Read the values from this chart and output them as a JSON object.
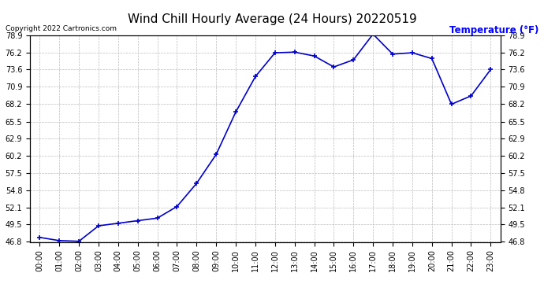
{
  "title": "Wind Chill Hourly Average (24 Hours) 20220519",
  "ylabel": "Temperature (°F)",
  "copyright_text": "Copyright 2022 Cartronics.com",
  "hours": [
    "00:00",
    "01:00",
    "02:00",
    "03:00",
    "04:00",
    "05:00",
    "06:00",
    "07:00",
    "08:00",
    "09:00",
    "10:00",
    "11:00",
    "12:00",
    "13:00",
    "14:00",
    "15:00",
    "16:00",
    "17:00",
    "18:00",
    "19:00",
    "20:00",
    "21:00",
    "22:00",
    "23:00"
  ],
  "values": [
    47.5,
    47.0,
    46.9,
    49.3,
    49.7,
    50.1,
    50.5,
    52.3,
    55.9,
    60.4,
    67.0,
    72.5,
    76.2,
    76.3,
    75.7,
    74.0,
    75.1,
    79.1,
    76.0,
    76.2,
    75.3,
    68.2,
    69.5,
    73.6
  ],
  "line_color": "#0000cc",
  "marker": "+",
  "marker_size": 5,
  "line_width": 1.2,
  "ylim_min": 46.8,
  "ylim_max": 78.9,
  "yticks": [
    46.8,
    49.5,
    52.1,
    54.8,
    57.5,
    60.2,
    62.9,
    65.5,
    68.2,
    70.9,
    73.6,
    76.2,
    78.9
  ],
  "background_color": "#ffffff",
  "grid_color": "#bbbbbb",
  "title_color": "#000000",
  "ylabel_color": "#0000ff",
  "copyright_color": "#000000",
  "title_fontsize": 11,
  "ylabel_fontsize": 8.5,
  "tick_fontsize": 7,
  "copyright_fontsize": 6.5
}
